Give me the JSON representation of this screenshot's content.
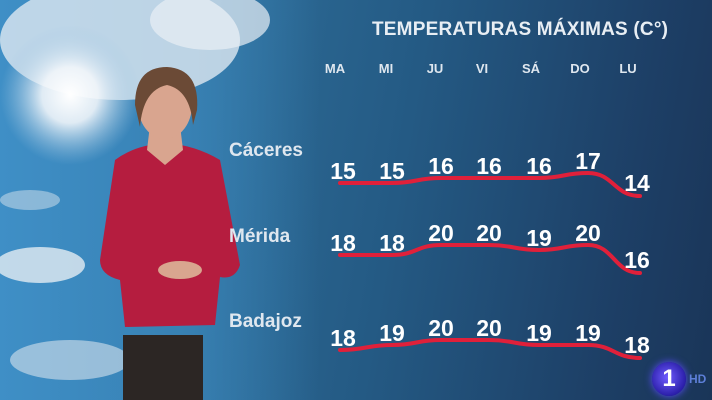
{
  "header": {
    "title": "TEMPERATURAS MÁXIMAS (C°)"
  },
  "channel": {
    "logo": "1",
    "badge": "HD"
  },
  "chart_data": {
    "type": "line",
    "title": "TEMPERATURAS MÁXIMAS (C°)",
    "categories": [
      "MA",
      "MI",
      "JU",
      "VI",
      "SÁ",
      "DO",
      "LU"
    ],
    "series": [
      {
        "name": "Cáceres",
        "values": [
          15,
          15,
          16,
          16,
          16,
          17,
          14
        ]
      },
      {
        "name": "Mérida",
        "values": [
          18,
          18,
          20,
          20,
          19,
          20,
          16
        ]
      },
      {
        "name": "Badajoz",
        "values": [
          18,
          19,
          20,
          20,
          19,
          19,
          18
        ]
      }
    ],
    "line_color": "#e0203a",
    "grid": false
  }
}
